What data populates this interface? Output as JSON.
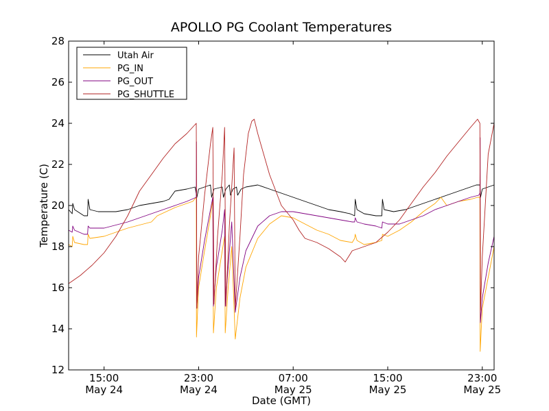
{
  "chart_data": {
    "type": "line",
    "title": "APOLLO PG Coolant Temperatures",
    "xlabel": "Date (GMT)",
    "ylabel": "Temperature (C)",
    "xlim_hours": [
      0,
      36
    ],
    "ylim": [
      12,
      28
    ],
    "yticks": [
      12,
      14,
      16,
      18,
      20,
      22,
      24,
      26,
      28
    ],
    "xticks": [
      {
        "hour": 3,
        "time": "15:00",
        "date": "May 24"
      },
      {
        "hour": 11,
        "time": "23:00",
        "date": "May 24"
      },
      {
        "hour": 19,
        "time": "07:00",
        "date": "May 25"
      },
      {
        "hour": 27,
        "time": "15:00",
        "date": "May 25"
      },
      {
        "hour": 35,
        "time": "23:00",
        "date": "May 25"
      }
    ],
    "x_origin": "May 24 12:00 GMT (hours offset)",
    "legend_position": "top-left",
    "series": [
      {
        "name": "Utah Air",
        "color": "#000000",
        "points": [
          [
            0,
            19.8
          ],
          [
            0.3,
            19.6
          ],
          [
            0.35,
            20.1
          ],
          [
            0.5,
            19.8
          ],
          [
            1.3,
            19.5
          ],
          [
            1.6,
            19.5
          ],
          [
            1.65,
            20.3
          ],
          [
            1.8,
            19.8
          ],
          [
            2.5,
            19.7
          ],
          [
            4,
            19.7
          ],
          [
            5,
            19.8
          ],
          [
            6,
            20.0
          ],
          [
            7,
            20.1
          ],
          [
            8,
            20.2
          ],
          [
            8.5,
            20.3
          ],
          [
            9,
            20.7
          ],
          [
            10,
            20.8
          ],
          [
            10.7,
            20.9
          ],
          [
            10.85,
            20.4
          ],
          [
            11,
            20.8
          ],
          [
            12,
            21.0
          ],
          [
            12.1,
            20.4
          ],
          [
            12.3,
            20.8
          ],
          [
            13,
            20.9
          ],
          [
            13.1,
            20.4
          ],
          [
            13.3,
            20.8
          ],
          [
            13.6,
            21.0
          ],
          [
            13.7,
            20.5
          ],
          [
            13.9,
            20.8
          ],
          [
            14.2,
            20.9
          ],
          [
            14.3,
            20.5
          ],
          [
            14.6,
            20.8
          ],
          [
            15,
            20.9
          ],
          [
            16,
            21.0
          ],
          [
            17,
            20.8
          ],
          [
            18,
            20.6
          ],
          [
            19,
            20.4
          ],
          [
            20,
            20.2
          ],
          [
            21,
            20.0
          ],
          [
            22,
            19.8
          ],
          [
            23,
            19.7
          ],
          [
            23.8,
            19.6
          ],
          [
            24.2,
            19.5
          ],
          [
            24.25,
            20.3
          ],
          [
            24.4,
            19.8
          ],
          [
            25,
            19.6
          ],
          [
            26,
            19.5
          ],
          [
            26.5,
            19.5
          ],
          [
            26.55,
            20.3
          ],
          [
            26.7,
            19.8
          ],
          [
            27.5,
            19.7
          ],
          [
            28.5,
            19.8
          ],
          [
            30,
            20.1
          ],
          [
            31,
            20.3
          ],
          [
            32,
            20.5
          ],
          [
            33,
            20.7
          ],
          [
            34,
            20.9
          ],
          [
            34.5,
            21.0
          ],
          [
            34.8,
            21.0
          ],
          [
            34.85,
            20.4
          ],
          [
            35,
            20.8
          ],
          [
            36,
            21.0
          ]
        ]
      },
      {
        "name": "PG_IN",
        "color": "#ffa500",
        "points": [
          [
            0,
            18.1
          ],
          [
            0.3,
            18.0
          ],
          [
            0.35,
            18.5
          ],
          [
            0.5,
            18.2
          ],
          [
            1.3,
            18.1
          ],
          [
            1.6,
            18.1
          ],
          [
            1.65,
            18.6
          ],
          [
            1.8,
            18.4
          ],
          [
            3,
            18.5
          ],
          [
            5,
            18.9
          ],
          [
            7,
            19.2
          ],
          [
            7.5,
            19.5
          ],
          [
            9,
            19.9
          ],
          [
            10.5,
            20.2
          ],
          [
            10.8,
            20.4
          ],
          [
            10.82,
            13.6
          ],
          [
            11,
            16
          ],
          [
            11.5,
            17.8
          ],
          [
            12,
            19.5
          ],
          [
            12.2,
            20.3
          ],
          [
            12.25,
            13.8
          ],
          [
            12.5,
            16
          ],
          [
            13,
            17.8
          ],
          [
            13.2,
            18.5
          ],
          [
            13.25,
            13.8
          ],
          [
            13.5,
            16
          ],
          [
            13.8,
            18
          ],
          [
            14.1,
            13.5
          ],
          [
            14.5,
            15.5
          ],
          [
            15,
            17
          ],
          [
            16,
            18.4
          ],
          [
            17,
            19.1
          ],
          [
            18,
            19.5
          ],
          [
            19,
            19.4
          ],
          [
            20,
            19.1
          ],
          [
            21,
            18.8
          ],
          [
            22,
            18.6
          ],
          [
            23,
            18.3
          ],
          [
            24,
            18.2
          ],
          [
            24.2,
            18.4
          ],
          [
            24.25,
            18.6
          ],
          [
            24.4,
            18.3
          ],
          [
            25,
            18.1
          ],
          [
            26,
            18.2
          ],
          [
            26.5,
            18.3
          ],
          [
            26.55,
            18.6
          ],
          [
            27,
            18.5
          ],
          [
            28,
            18.8
          ],
          [
            29,
            19.2
          ],
          [
            30,
            19.7
          ],
          [
            31,
            20.1
          ],
          [
            31.5,
            20.4
          ],
          [
            32,
            20.0
          ],
          [
            33,
            20.2
          ],
          [
            34,
            20.3
          ],
          [
            34.6,
            20.4
          ],
          [
            34.8,
            20.4
          ],
          [
            34.82,
            12.9
          ],
          [
            35,
            15
          ],
          [
            35.5,
            16.5
          ],
          [
            36,
            18.0
          ]
        ]
      },
      {
        "name": "PG_OUT",
        "color": "#800080",
        "points": [
          [
            0,
            18.8
          ],
          [
            0.3,
            18.7
          ],
          [
            0.35,
            19.0
          ],
          [
            0.5,
            18.8
          ],
          [
            1.3,
            18.6
          ],
          [
            1.6,
            18.6
          ],
          [
            1.65,
            19.0
          ],
          [
            1.8,
            18.9
          ],
          [
            3,
            18.9
          ],
          [
            5,
            19.2
          ],
          [
            7,
            19.6
          ],
          [
            8,
            19.8
          ],
          [
            9,
            20.0
          ],
          [
            10,
            20.2
          ],
          [
            10.8,
            20.4
          ],
          [
            10.82,
            23.1
          ],
          [
            10.84,
            15
          ],
          [
            11,
            16.5
          ],
          [
            11.5,
            18.3
          ],
          [
            12,
            19.8
          ],
          [
            12.2,
            20.4
          ],
          [
            12.25,
            15.1
          ],
          [
            12.5,
            17
          ],
          [
            13,
            18.8
          ],
          [
            13.2,
            19.8
          ],
          [
            13.25,
            15.1
          ],
          [
            13.5,
            17
          ],
          [
            13.8,
            19.2
          ],
          [
            14.1,
            14.8
          ],
          [
            14.5,
            16.5
          ],
          [
            15,
            17.8
          ],
          [
            16,
            19.0
          ],
          [
            17,
            19.5
          ],
          [
            18,
            19.7
          ],
          [
            19,
            19.7
          ],
          [
            20,
            19.6
          ],
          [
            21,
            19.5
          ],
          [
            22,
            19.4
          ],
          [
            23,
            19.3
          ],
          [
            24,
            19.2
          ],
          [
            24.2,
            19.2
          ],
          [
            24.25,
            19.4
          ],
          [
            24.4,
            19.2
          ],
          [
            25,
            19.1
          ],
          [
            26,
            19.0
          ],
          [
            26.5,
            18.9
          ],
          [
            26.55,
            19.2
          ],
          [
            27,
            19.1
          ],
          [
            28,
            19.1
          ],
          [
            29,
            19.3
          ],
          [
            30,
            19.5
          ],
          [
            31,
            19.8
          ],
          [
            32,
            20.0
          ],
          [
            33,
            20.2
          ],
          [
            34,
            20.4
          ],
          [
            34.7,
            20.5
          ],
          [
            34.8,
            20.6
          ],
          [
            34.82,
            23.3
          ],
          [
            34.84,
            14.3
          ],
          [
            35,
            15.5
          ],
          [
            35.5,
            17.2
          ],
          [
            36,
            18.5
          ]
        ]
      },
      {
        "name": "PG_SHUTTLE",
        "color": "#b22222",
        "points": [
          [
            0,
            16.2
          ],
          [
            1,
            16.6
          ],
          [
            2,
            17.1
          ],
          [
            3,
            17.7
          ],
          [
            4,
            18.5
          ],
          [
            5,
            19.5
          ],
          [
            6,
            20.7
          ],
          [
            7,
            21.5
          ],
          [
            8,
            22.3
          ],
          [
            9,
            23.0
          ],
          [
            10,
            23.5
          ],
          [
            10.8,
            24.0
          ],
          [
            10.85,
            15.0
          ],
          [
            11,
            17.5
          ],
          [
            11.5,
            20.5
          ],
          [
            12,
            23.0
          ],
          [
            12.2,
            23.8
          ],
          [
            12.3,
            15.2
          ],
          [
            12.6,
            18.5
          ],
          [
            13,
            21.5
          ],
          [
            13.2,
            23.8
          ],
          [
            13.3,
            15.1
          ],
          [
            13.6,
            19
          ],
          [
            14,
            22.8
          ],
          [
            14.1,
            15.0
          ],
          [
            14.5,
            18.5
          ],
          [
            14.8,
            21.5
          ],
          [
            15.2,
            23.5
          ],
          [
            15.5,
            24.1
          ],
          [
            15.7,
            24.2
          ],
          [
            16,
            23.5
          ],
          [
            16.5,
            22.5
          ],
          [
            17,
            21.5
          ],
          [
            18,
            20.0
          ],
          [
            19,
            19.3
          ],
          [
            19.5,
            18.8
          ],
          [
            20,
            18.4
          ],
          [
            21,
            18.2
          ],
          [
            22,
            17.9
          ],
          [
            23,
            17.5
          ],
          [
            23.4,
            17.25
          ],
          [
            24,
            17.8
          ],
          [
            25,
            18.0
          ],
          [
            26,
            18.2
          ],
          [
            27,
            18.7
          ],
          [
            28,
            19.3
          ],
          [
            29,
            20.1
          ],
          [
            30,
            20.9
          ],
          [
            31,
            21.6
          ],
          [
            32,
            22.4
          ],
          [
            33,
            23.1
          ],
          [
            34,
            23.8
          ],
          [
            34.6,
            24.2
          ],
          [
            34.8,
            24.0
          ],
          [
            34.85,
            14.9
          ],
          [
            35,
            17.5
          ],
          [
            35.5,
            22.5
          ],
          [
            36,
            24.0
          ]
        ]
      }
    ]
  }
}
